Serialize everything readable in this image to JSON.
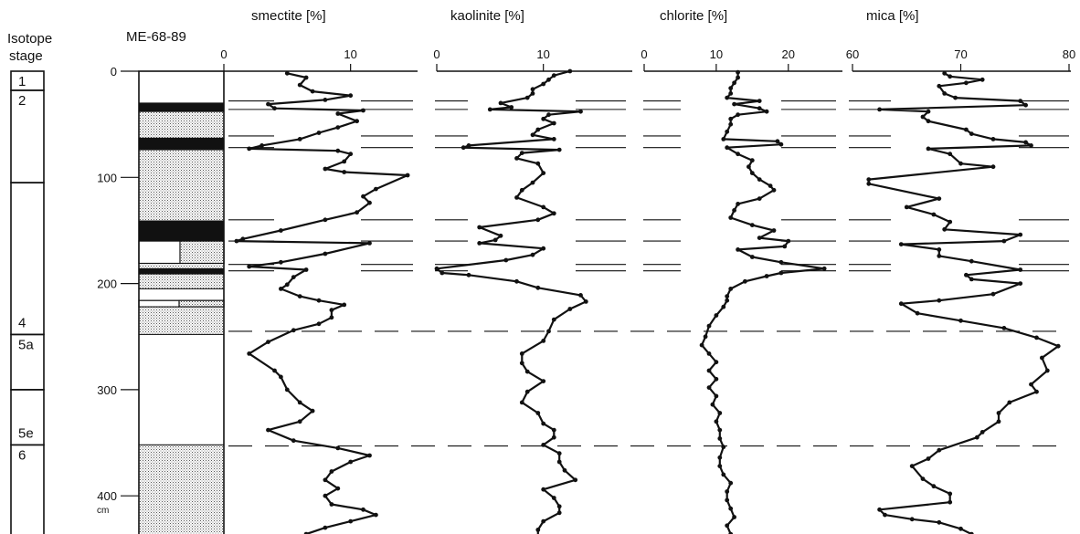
{
  "figure": {
    "stage_title": [
      "Isotope",
      "stage"
    ],
    "core_label": "ME-68-89",
    "depth_unit": "cm"
  },
  "chart_data": {
    "type": "line",
    "depth_axis": {
      "label": "cm",
      "range": [
        0,
        440
      ],
      "ticks": [
        0,
        100,
        200,
        300,
        400
      ]
    },
    "isotope_stages": [
      {
        "label": "1",
        "top": 0,
        "bottom": 18
      },
      {
        "label": "2",
        "top": 18,
        "bottom": 105
      },
      {
        "label": "4",
        "top": 105,
        "bottom": 248
      },
      {
        "label": "5a",
        "top": 248,
        "bottom": 300
      },
      {
        "label": "5e",
        "top": 300,
        "bottom": 352
      },
      {
        "label": "6",
        "top": 352,
        "bottom": 440
      }
    ],
    "lithology": [
      {
        "top": 0,
        "bottom": 30,
        "fill": "blank"
      },
      {
        "top": 30,
        "bottom": 38,
        "fill": "black"
      },
      {
        "top": 38,
        "bottom": 63,
        "fill": "dotted"
      },
      {
        "top": 63,
        "bottom": 74,
        "fill": "black"
      },
      {
        "top": 74,
        "bottom": 141,
        "fill": "dotted"
      },
      {
        "top": 141,
        "bottom": 160,
        "fill": "black"
      },
      {
        "top": 160,
        "bottom": 181,
        "fill": "split"
      },
      {
        "top": 181,
        "bottom": 186,
        "fill": "dotted"
      },
      {
        "top": 186,
        "bottom": 191,
        "fill": "black"
      },
      {
        "top": 191,
        "bottom": 205,
        "fill": "dotted"
      },
      {
        "top": 205,
        "bottom": 216,
        "fill": "blank"
      },
      {
        "top": 216,
        "bottom": 222,
        "fill": "split"
      },
      {
        "top": 222,
        "bottom": 248,
        "fill": "dotted"
      },
      {
        "top": 248,
        "bottom": 352,
        "fill": "blank"
      },
      {
        "top": 352,
        "bottom": 440,
        "fill": "dotted"
      }
    ],
    "horizons": [
      {
        "depth": 28,
        "style": "solid"
      },
      {
        "depth": 36,
        "style": "solid"
      },
      {
        "depth": 61,
        "style": "solid"
      },
      {
        "depth": 72,
        "style": "solid"
      },
      {
        "depth": 140,
        "style": "solid"
      },
      {
        "depth": 160,
        "style": "solid"
      },
      {
        "depth": 182,
        "style": "solid"
      },
      {
        "depth": 188,
        "style": "solid"
      },
      {
        "depth": 245,
        "style": "dashed"
      },
      {
        "depth": 353,
        "style": "dashed"
      }
    ],
    "series": [
      {
        "name": "smectite",
        "title": "smectite [%]",
        "xlim": [
          0,
          15
        ],
        "ticks": [
          0,
          10
        ],
        "points": [
          [
            5,
            2
          ],
          [
            6.5,
            6
          ],
          [
            6,
            13
          ],
          [
            7,
            19
          ],
          [
            10,
            23
          ],
          [
            8,
            27
          ],
          [
            3.5,
            31
          ],
          [
            4,
            35
          ],
          [
            11,
            37
          ],
          [
            9,
            40
          ],
          [
            10.5,
            47
          ],
          [
            9,
            53
          ],
          [
            7.5,
            58
          ],
          [
            6,
            64
          ],
          [
            3,
            70
          ],
          [
            2,
            73
          ],
          [
            9,
            75
          ],
          [
            10,
            78
          ],
          [
            9.5,
            85
          ],
          [
            8,
            92
          ],
          [
            9.5,
            95
          ],
          [
            14.5,
            98
          ],
          [
            12,
            111
          ],
          [
            11,
            118
          ],
          [
            11.5,
            124
          ],
          [
            10.5,
            133
          ],
          [
            8,
            140
          ],
          [
            4.5,
            150
          ],
          [
            1.5,
            158
          ],
          [
            1,
            160
          ],
          [
            11.5,
            162
          ],
          [
            8,
            172
          ],
          [
            4.5,
            180
          ],
          [
            2,
            184
          ],
          [
            6.5,
            187
          ],
          [
            5.5,
            194
          ],
          [
            5,
            201
          ],
          [
            4.5,
            205
          ],
          [
            6,
            212
          ],
          [
            7.5,
            216
          ],
          [
            9.5,
            220
          ],
          [
            8.5,
            225
          ],
          [
            8.5,
            232
          ],
          [
            7.5,
            238
          ],
          [
            5.5,
            244
          ],
          [
            3.5,
            255
          ],
          [
            2,
            266
          ],
          [
            4,
            282
          ],
          [
            4.5,
            288
          ],
          [
            5,
            300
          ],
          [
            6,
            312
          ],
          [
            7,
            320
          ],
          [
            6,
            330
          ],
          [
            3.5,
            338
          ],
          [
            5.5,
            348
          ],
          [
            9,
            355
          ],
          [
            11.5,
            362
          ],
          [
            10,
            368
          ],
          [
            8.5,
            377
          ],
          [
            8,
            385
          ],
          [
            9,
            393
          ],
          [
            8,
            400
          ],
          [
            8.5,
            408
          ],
          [
            11,
            413
          ],
          [
            12,
            418
          ],
          [
            10,
            424
          ],
          [
            8,
            430
          ],
          [
            6.5,
            436
          ]
        ]
      },
      {
        "name": "kaolinite",
        "title": "kaolinite [%]",
        "xlim": [
          0,
          18
        ],
        "ticks": [
          0,
          10
        ],
        "points": [
          [
            12.5,
            0
          ],
          [
            11,
            4
          ],
          [
            10.5,
            8
          ],
          [
            10,
            12
          ],
          [
            9,
            17
          ],
          [
            9,
            21
          ],
          [
            8.5,
            25
          ],
          [
            6,
            30
          ],
          [
            7,
            34
          ],
          [
            5,
            36
          ],
          [
            13.5,
            38
          ],
          [
            10.5,
            41
          ],
          [
            10,
            45
          ],
          [
            11,
            49
          ],
          [
            9.5,
            55
          ],
          [
            9,
            60
          ],
          [
            11,
            64
          ],
          [
            3,
            70
          ],
          [
            2.5,
            72
          ],
          [
            11.5,
            74
          ],
          [
            8,
            77
          ],
          [
            7.5,
            82
          ],
          [
            9.5,
            87
          ],
          [
            10,
            96
          ],
          [
            9,
            105
          ],
          [
            8,
            112
          ],
          [
            7.5,
            119
          ],
          [
            10,
            128
          ],
          [
            11,
            134
          ],
          [
            9.5,
            140
          ],
          [
            4,
            147
          ],
          [
            6,
            155
          ],
          [
            5.5,
            159
          ],
          [
            4,
            162
          ],
          [
            10,
            167
          ],
          [
            9,
            173
          ],
          [
            6.5,
            178
          ],
          [
            0,
            186
          ],
          [
            0.5,
            190
          ],
          [
            3,
            192
          ],
          [
            7.5,
            198
          ],
          [
            9.5,
            204
          ],
          [
            13.5,
            211
          ],
          [
            14,
            217
          ],
          [
            12.5,
            224
          ],
          [
            11,
            234
          ],
          [
            10.5,
            245
          ],
          [
            10,
            254
          ],
          [
            8,
            266
          ],
          [
            8,
            275
          ],
          [
            8.5,
            283
          ],
          [
            10,
            292
          ],
          [
            8.5,
            302
          ],
          [
            8,
            312
          ],
          [
            9.5,
            322
          ],
          [
            10,
            332
          ],
          [
            11,
            338
          ],
          [
            11,
            345
          ],
          [
            10,
            352
          ],
          [
            11.5,
            360
          ],
          [
            11.5,
            368
          ],
          [
            12,
            376
          ],
          [
            13,
            385
          ],
          [
            10,
            394
          ],
          [
            11,
            402
          ],
          [
            11.5,
            410
          ],
          [
            11.5,
            416
          ],
          [
            10,
            424
          ],
          [
            9.5,
            432
          ],
          [
            9.5,
            438
          ]
        ]
      },
      {
        "name": "chlorite",
        "title": "chlorite [%]",
        "xlim": [
          0,
          27
        ],
        "ticks": [
          0,
          10,
          20
        ],
        "points": [
          [
            13,
            1
          ],
          [
            13,
            6
          ],
          [
            12.5,
            11
          ],
          [
            12,
            16
          ],
          [
            12,
            21
          ],
          [
            11.5,
            25
          ],
          [
            16,
            28
          ],
          [
            12.5,
            31
          ],
          [
            16,
            35
          ],
          [
            17,
            38
          ],
          [
            13,
            41
          ],
          [
            12,
            45
          ],
          [
            12,
            50
          ],
          [
            11.5,
            57
          ],
          [
            11,
            64
          ],
          [
            18.5,
            66
          ],
          [
            19,
            69
          ],
          [
            11.5,
            72
          ],
          [
            13,
            78
          ],
          [
            15,
            84
          ],
          [
            14.5,
            90
          ],
          [
            15,
            96
          ],
          [
            16,
            102
          ],
          [
            17.5,
            108
          ],
          [
            18,
            112
          ],
          [
            16,
            120
          ],
          [
            13,
            125
          ],
          [
            12.5,
            131
          ],
          [
            12,
            138
          ],
          [
            15,
            145
          ],
          [
            18,
            150
          ],
          [
            16,
            157
          ],
          [
            20,
            160
          ],
          [
            19.5,
            165
          ],
          [
            13,
            168
          ],
          [
            15,
            175
          ],
          [
            19,
            180
          ],
          [
            25,
            186
          ],
          [
            19,
            190
          ],
          [
            17,
            193
          ],
          [
            14,
            198
          ],
          [
            12,
            205
          ],
          [
            11.5,
            212
          ],
          [
            11.5,
            216
          ],
          [
            11,
            222
          ],
          [
            10,
            230
          ],
          [
            9,
            240
          ],
          [
            8.5,
            250
          ],
          [
            8,
            258
          ],
          [
            9,
            266
          ],
          [
            10,
            274
          ],
          [
            9,
            282
          ],
          [
            10,
            290
          ],
          [
            9,
            298
          ],
          [
            10,
            306
          ],
          [
            9.5,
            314
          ],
          [
            10.5,
            322
          ],
          [
            10,
            330
          ],
          [
            10.5,
            338
          ],
          [
            10.5,
            346
          ],
          [
            11,
            354
          ],
          [
            10.5,
            364
          ],
          [
            10.5,
            372
          ],
          [
            11,
            380
          ],
          [
            12,
            388
          ],
          [
            11.5,
            396
          ],
          [
            11.5,
            404
          ],
          [
            12,
            412
          ],
          [
            12.5,
            420
          ],
          [
            11.5,
            428
          ],
          [
            12,
            436
          ]
        ]
      },
      {
        "name": "mica",
        "title": "mica [%]",
        "xlim": [
          60,
          80
        ],
        "ticks": [
          60,
          70,
          80
        ],
        "points": [
          [
            68.5,
            2
          ],
          [
            69,
            5
          ],
          [
            72,
            8
          ],
          [
            70.5,
            11
          ],
          [
            68,
            14
          ],
          [
            68.5,
            21
          ],
          [
            69.5,
            25
          ],
          [
            75.5,
            28
          ],
          [
            76,
            32
          ],
          [
            62.5,
            36
          ],
          [
            67,
            38
          ],
          [
            66.5,
            43
          ],
          [
            67,
            47
          ],
          [
            70.5,
            55
          ],
          [
            71,
            59
          ],
          [
            73,
            64
          ],
          [
            76,
            67
          ],
          [
            76.5,
            70
          ],
          [
            67,
            73
          ],
          [
            69,
            78
          ],
          [
            70,
            87
          ],
          [
            73,
            90
          ],
          [
            61.5,
            102
          ],
          [
            61.5,
            106
          ],
          [
            68,
            120
          ],
          [
            65,
            128
          ],
          [
            67.5,
            135
          ],
          [
            69,
            142
          ],
          [
            68.5,
            149
          ],
          [
            75.5,
            154
          ],
          [
            74,
            160
          ],
          [
            64.5,
            163
          ],
          [
            68,
            168
          ],
          [
            68,
            174
          ],
          [
            71,
            179
          ],
          [
            75.5,
            187
          ],
          [
            70.5,
            192
          ],
          [
            71,
            196
          ],
          [
            75.5,
            200
          ],
          [
            73,
            210
          ],
          [
            68,
            216
          ],
          [
            64.5,
            219
          ],
          [
            66,
            228
          ],
          [
            70,
            235
          ],
          [
            74,
            242
          ],
          [
            77,
            251
          ],
          [
            79,
            259
          ],
          [
            77.5,
            270
          ],
          [
            78,
            282
          ],
          [
            76.5,
            295
          ],
          [
            77,
            302
          ],
          [
            74.5,
            312
          ],
          [
            73.5,
            322
          ],
          [
            73.5,
            330
          ],
          [
            72,
            340
          ],
          [
            71.5,
            345
          ],
          [
            68,
            357
          ],
          [
            67,
            365
          ],
          [
            65.5,
            372
          ],
          [
            66.5,
            384
          ],
          [
            67.5,
            391
          ],
          [
            69,
            398
          ],
          [
            69,
            406
          ],
          [
            62.5,
            413
          ],
          [
            63,
            418
          ],
          [
            65.5,
            422
          ],
          [
            68,
            425
          ],
          [
            70,
            431
          ],
          [
            71,
            436
          ]
        ]
      }
    ]
  }
}
